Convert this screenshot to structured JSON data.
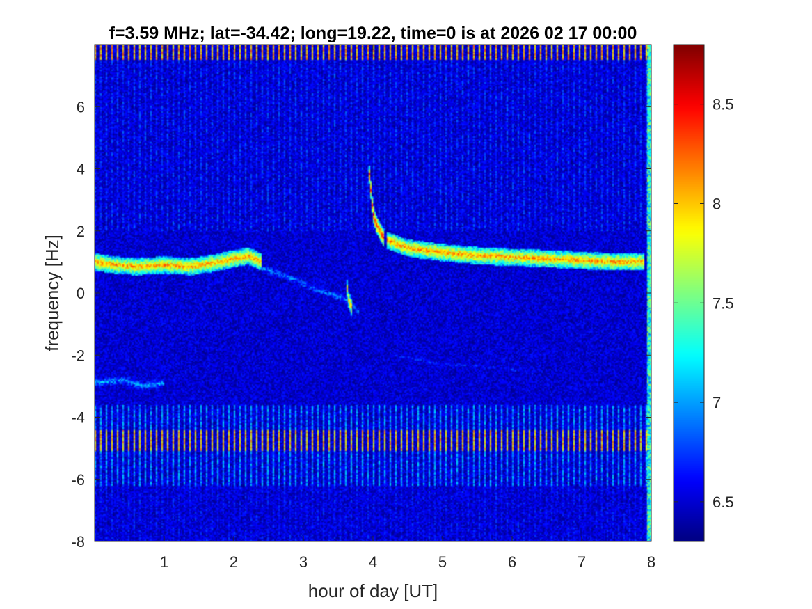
{
  "chart_data": {
    "type": "heatmap",
    "title": "f=3.59 MHz;  lat=-34.42; long=19.22, time=0 is at 2026 02 17 00:00",
    "xlabel": "hour of day [UT]",
    "ylabel": "frequency [Hz]",
    "xlim": [
      0,
      8
    ],
    "ylim": [
      -8,
      8
    ],
    "x_ticks": [
      1,
      2,
      3,
      4,
      5,
      6,
      7,
      8
    ],
    "y_ticks": [
      -8,
      -6,
      -4,
      -2,
      0,
      2,
      4,
      6
    ],
    "colorbar": {
      "colormap": "jet",
      "range": [
        6.3,
        8.8
      ],
      "ticks": [
        6.5,
        7,
        7.5,
        8,
        8.5
      ]
    },
    "background_level": 6.5,
    "features": [
      {
        "name": "main trace",
        "points": [
          [
            0.0,
            1.0
          ],
          [
            0.3,
            0.9
          ],
          [
            0.6,
            0.85
          ],
          [
            1.0,
            0.9
          ],
          [
            1.4,
            0.85
          ],
          [
            1.8,
            1.0
          ],
          [
            2.2,
            1.2
          ],
          [
            2.4,
            1.0
          ]
        ],
        "level": 8.4
      },
      {
        "name": "descending trace",
        "points": [
          [
            2.4,
            0.8
          ],
          [
            2.8,
            0.5
          ],
          [
            3.2,
            0.1
          ],
          [
            3.6,
            -0.2
          ],
          [
            3.8,
            -0.6
          ]
        ],
        "level": 7.2
      },
      {
        "name": "spike",
        "points": [
          [
            3.62,
            0.3
          ],
          [
            3.65,
            -0.2
          ],
          [
            3.7,
            -0.5
          ]
        ],
        "level": 8.3
      },
      {
        "name": "burst",
        "points": [
          [
            3.95,
            3.8
          ],
          [
            4.0,
            2.6
          ],
          [
            4.05,
            2.2
          ],
          [
            4.15,
            1.8
          ]
        ],
        "level": 8.6
      },
      {
        "name": "recovery trace",
        "points": [
          [
            4.2,
            1.7
          ],
          [
            4.5,
            1.45
          ],
          [
            5.0,
            1.3
          ],
          [
            5.5,
            1.2
          ],
          [
            6.0,
            1.15
          ],
          [
            6.5,
            1.1
          ],
          [
            7.0,
            1.05
          ],
          [
            7.5,
            1.0
          ],
          [
            7.9,
            1.0
          ]
        ],
        "level": 8.4
      },
      {
        "name": "lower trace",
        "points": [
          [
            0.0,
            -2.9
          ],
          [
            0.4,
            -2.8
          ],
          [
            0.7,
            -3.0
          ],
          [
            1.0,
            -2.9
          ]
        ],
        "level": 7.3
      },
      {
        "name": "faint lower trace",
        "points": [
          [
            4.3,
            -2.0
          ],
          [
            5.0,
            -2.3
          ],
          [
            5.8,
            -2.4
          ],
          [
            6.3,
            -2.6
          ]
        ],
        "level": 6.9
      }
    ],
    "periodic_stripes": [
      {
        "y_range": [
          7.5,
          8.0
        ],
        "level": 8.3
      },
      {
        "y_range": [
          -5.1,
          -4.4
        ],
        "level": 8.2
      },
      {
        "y_range": [
          -6.2,
          -3.6
        ],
        "level": 7.2
      },
      {
        "y_range": [
          2.0,
          7.5
        ],
        "level": 6.9
      },
      {
        "y_range": [
          -8.0,
          -6.2
        ],
        "level": 6.8
      }
    ]
  }
}
